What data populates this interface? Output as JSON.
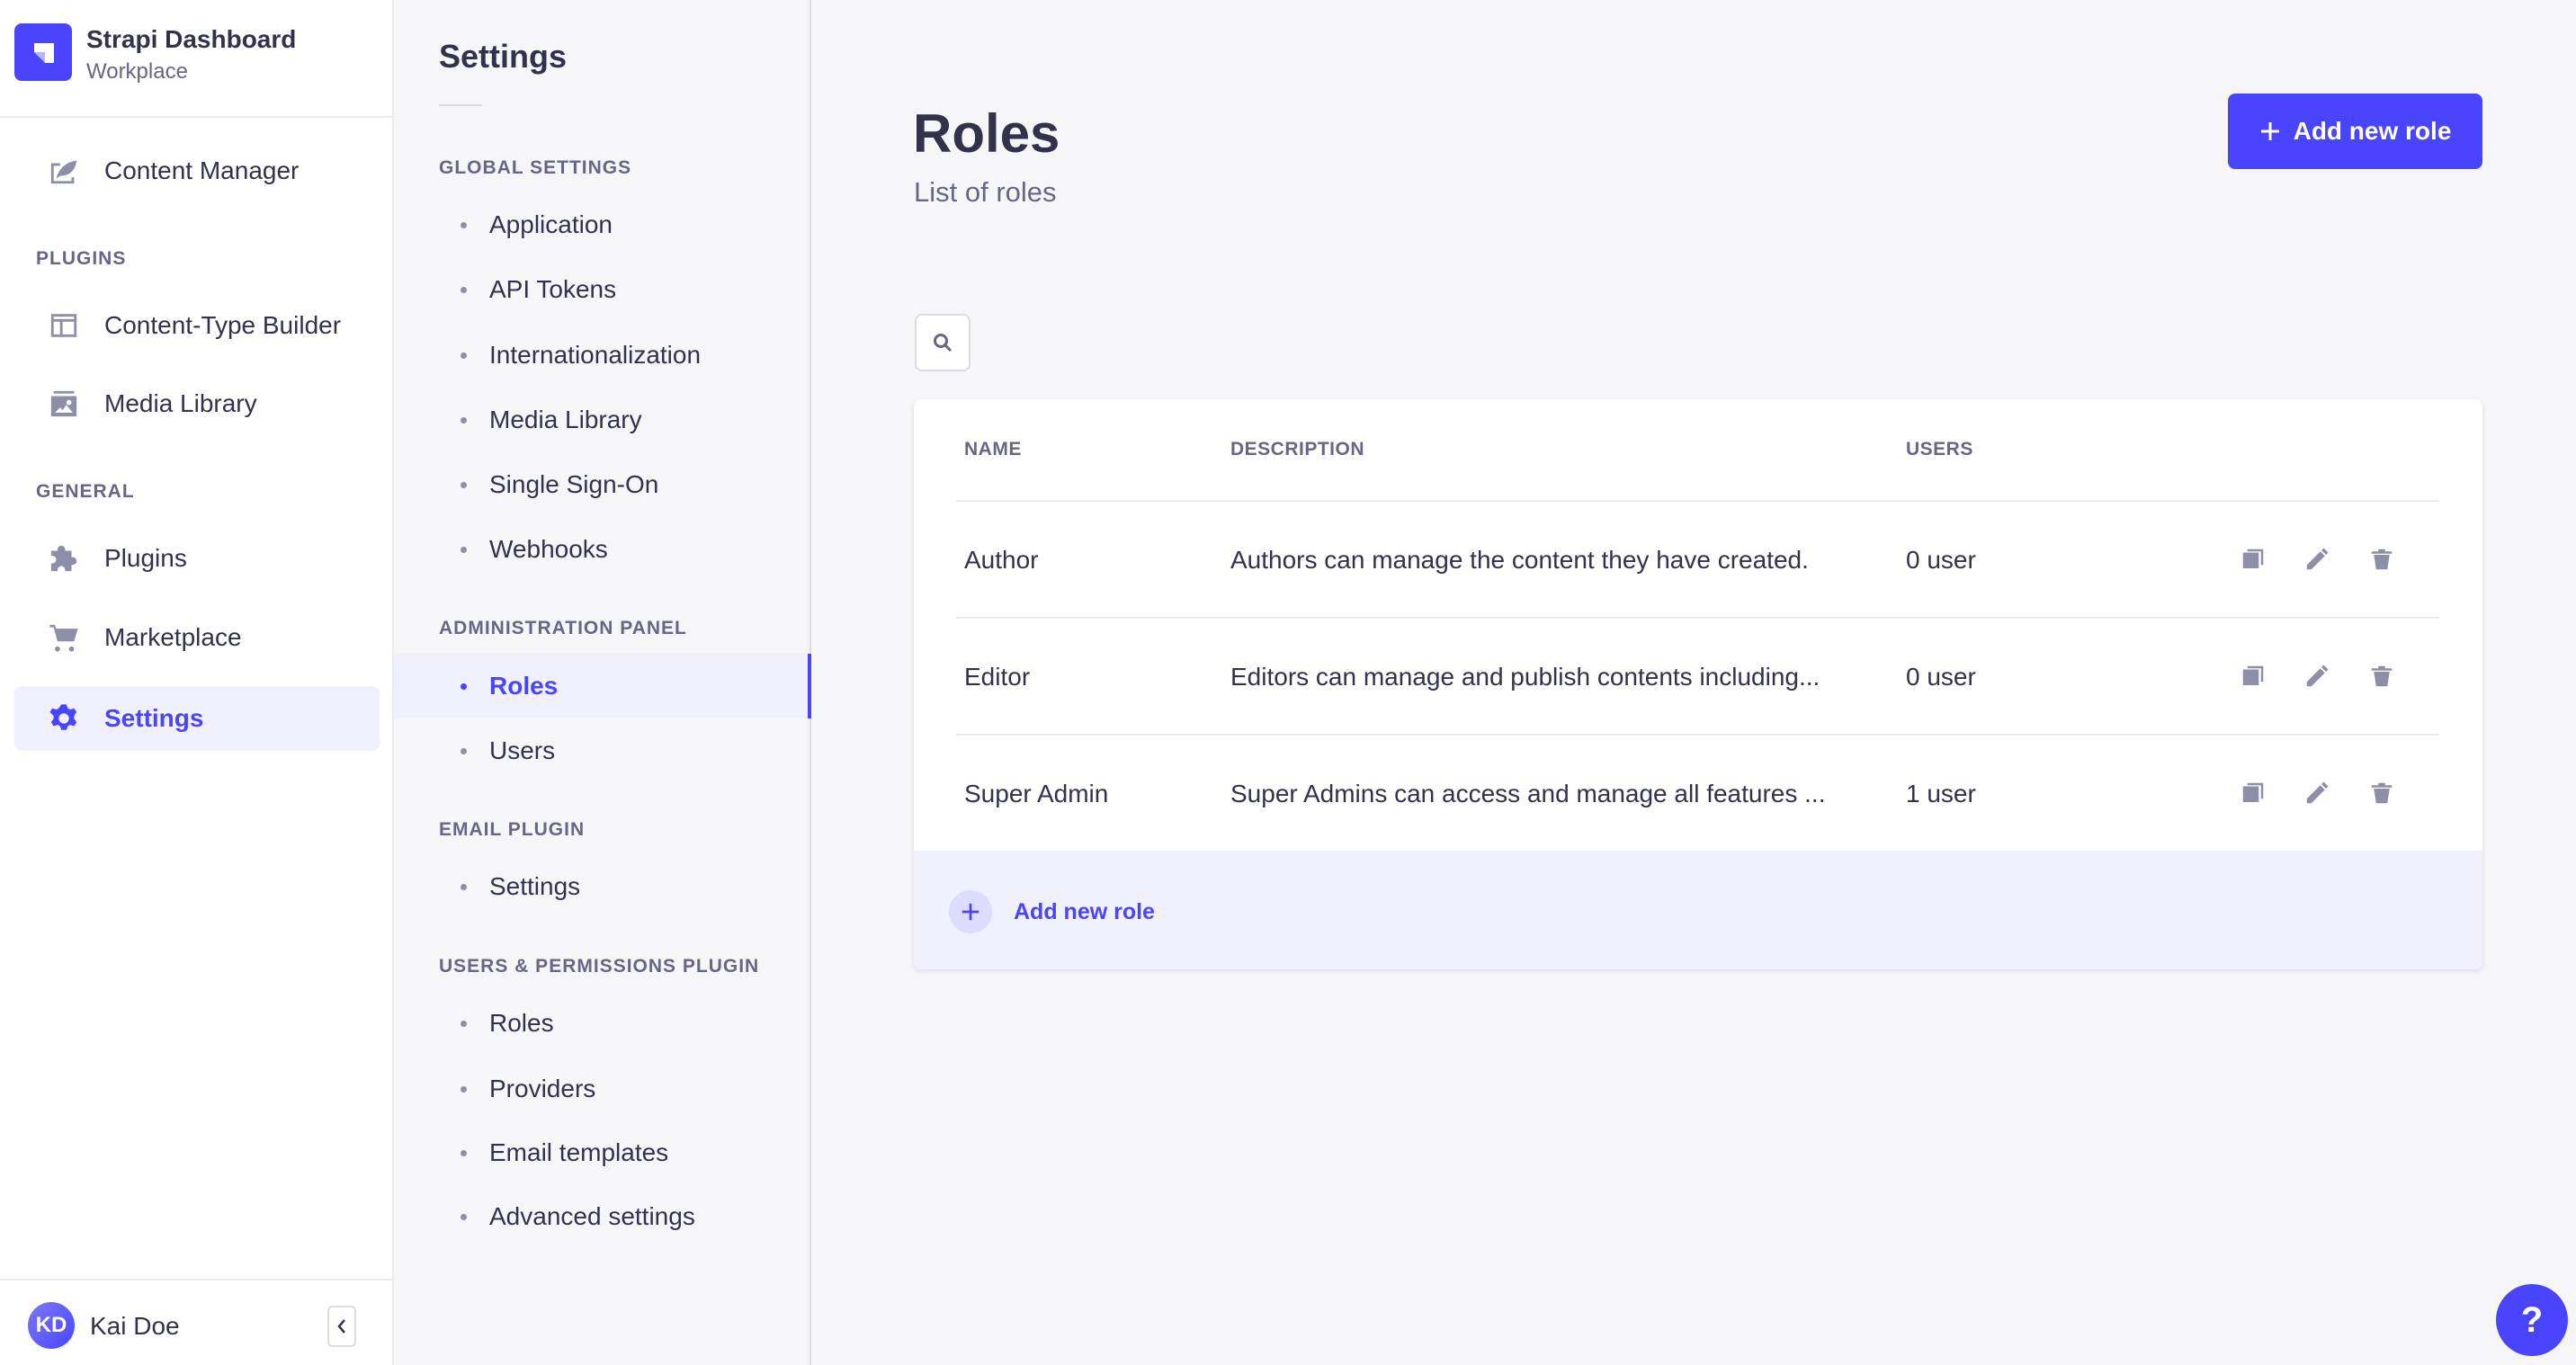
{
  "brand": {
    "title": "Strapi Dashboard",
    "subtitle": "Workplace",
    "color": "#4945ff"
  },
  "nav": {
    "content_manager": "Content Manager",
    "plugins_section": "PLUGINS",
    "ctb": "Content-Type Builder",
    "media": "Media Library",
    "general_section": "GENERAL",
    "plugins": "Plugins",
    "marketplace": "Marketplace",
    "settings": "Settings"
  },
  "user": {
    "initials": "KD",
    "name": "Kai Doe"
  },
  "settings_nav": {
    "title": "Settings",
    "global": {
      "label": "GLOBAL SETTINGS",
      "items": [
        "Application",
        "API Tokens",
        "Internationalization",
        "Media Library",
        "Single Sign-On",
        "Webhooks"
      ]
    },
    "admin": {
      "label": "ADMINISTRATION PANEL",
      "items": [
        "Roles",
        "Users"
      ]
    },
    "email": {
      "label": "EMAIL PLUGIN",
      "items": [
        "Settings"
      ]
    },
    "up": {
      "label": "USERS & PERMISSIONS PLUGIN",
      "items": [
        "Roles",
        "Providers",
        "Email templates",
        "Advanced settings"
      ]
    }
  },
  "main": {
    "title": "Roles",
    "subtitle": "List of roles",
    "add_button": "Add new role",
    "footer_add": "Add new role",
    "columns": [
      "NAME",
      "DESCRIPTION",
      "USERS"
    ],
    "rows": [
      {
        "name": "Author",
        "description": "Authors can manage the content they have created.",
        "users": "0 user"
      },
      {
        "name": "Editor",
        "description": "Editors can manage and publish contents including...",
        "users": "0 user"
      },
      {
        "name": "Super Admin",
        "description": "Super Admins can access and manage all features ...",
        "users": "1 user"
      }
    ]
  },
  "help": {
    "label": "?"
  }
}
